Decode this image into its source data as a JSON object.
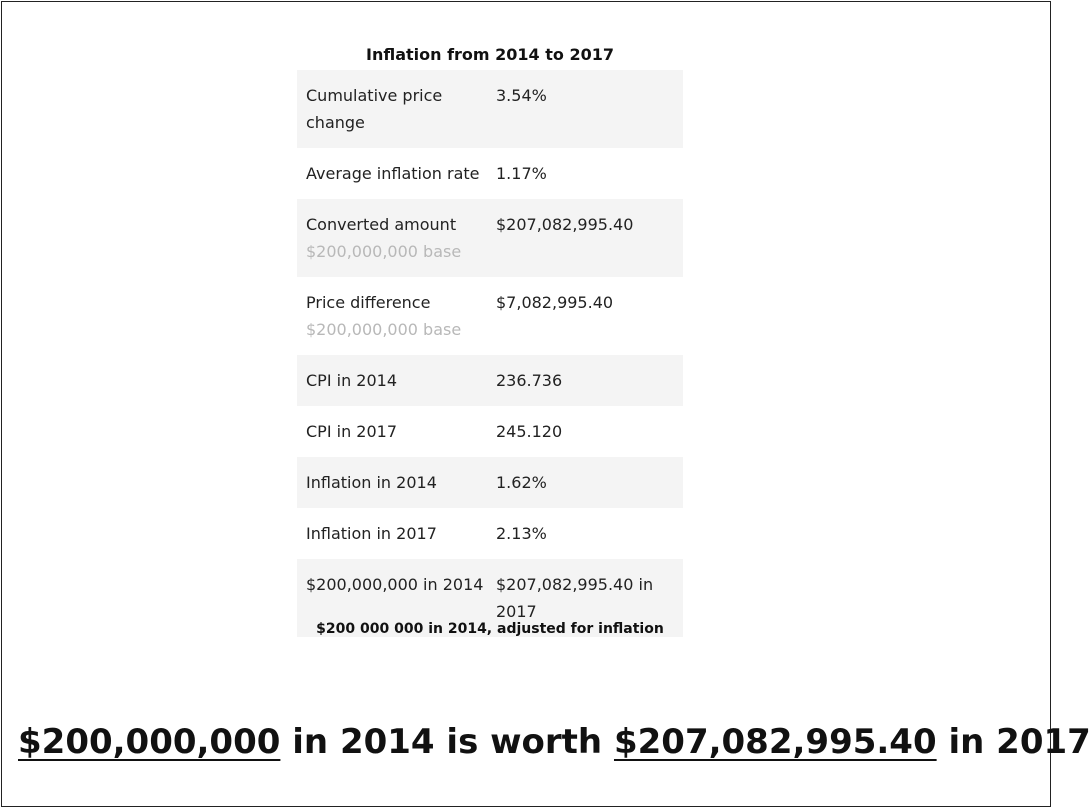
{
  "table": {
    "title": "Inflation from 2014 to 2017",
    "rows": [
      {
        "label": "Cumulative price change",
        "value": "3.54%"
      },
      {
        "label": "Average inflation rate",
        "value": "1.17%"
      },
      {
        "label": "Converted amount",
        "note": "$200,000,000 base",
        "value": "$207,082,995.40"
      },
      {
        "label": "Price difference",
        "note": "$200,000,000 base",
        "value": "$7,082,995.40"
      },
      {
        "label": "CPI in 2014",
        "value": "236.736"
      },
      {
        "label": "CPI in 2017",
        "value": "245.120"
      },
      {
        "label": "Inflation in 2014",
        "value": "1.62%"
      },
      {
        "label": "Inflation in 2017",
        "value": "2.13%"
      },
      {
        "label": "$200,000,000 in 2014",
        "value": "$207,082,995.40 in 2017"
      }
    ],
    "caption": "$200 000 000 in 2014, adjusted for inflation"
  },
  "summary": {
    "from_amount": "$200,000,000",
    "middle": "in 2014 is worth",
    "to_amount": "$207,082,995.40",
    "end": "in 2017"
  }
}
